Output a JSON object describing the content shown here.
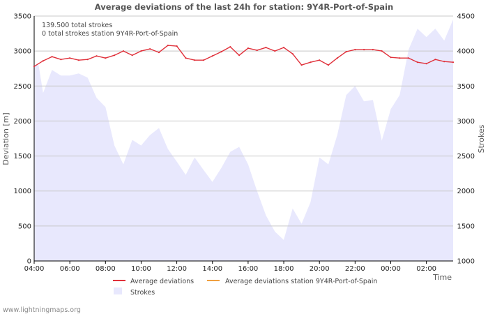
{
  "chart_data": {
    "type": "line",
    "title": "Average deviations of the last 24h for station: 9Y4R-Port-of-Spain",
    "xlabel": "Time",
    "ylabel": "Deviation  [m]",
    "y2label": "Strokes",
    "x_ticks": [
      "04:00",
      "06:00",
      "08:00",
      "10:00",
      "12:00",
      "14:00",
      "16:00",
      "18:00",
      "20:00",
      "22:00",
      "00:00",
      "02:00"
    ],
    "ylim": [
      0,
      3500
    ],
    "y_ticks": [
      0,
      500,
      1000,
      1500,
      2000,
      2500,
      3000,
      3500
    ],
    "y2lim": [
      1000,
      4500
    ],
    "y2_ticks": [
      1000,
      1500,
      2000,
      2500,
      3000,
      3500,
      4000,
      4500
    ],
    "x_range_hours": [
      0,
      23.5
    ],
    "annotations": [
      "139.500 total strokes",
      "0 total strokes station 9Y4R-Port-of-Spain"
    ],
    "grid": true,
    "series": [
      {
        "name": "Average deviations",
        "axis": "left",
        "color": "#e0303a",
        "x": [
          0,
          0.5,
          1,
          1.5,
          2,
          2.5,
          3,
          3.5,
          4,
          4.5,
          5,
          5.5,
          6,
          6.5,
          7,
          7.5,
          8,
          8.5,
          9,
          9.5,
          10,
          10.5,
          11,
          11.5,
          12,
          12.5,
          13,
          13.5,
          14,
          14.5,
          15,
          15.5,
          16,
          16.5,
          17,
          17.5,
          18,
          18.5,
          19,
          19.5,
          20,
          20.5,
          21,
          21.5,
          22,
          22.5,
          23,
          23.5
        ],
        "values": [
          2780,
          2860,
          2920,
          2880,
          2900,
          2870,
          2880,
          2930,
          2900,
          2940,
          3000,
          2940,
          3000,
          3030,
          2980,
          3080,
          3070,
          2900,
          2870,
          2870,
          2930,
          2990,
          3060,
          2940,
          3040,
          3010,
          3050,
          3000,
          3050,
          2960,
          2800,
          2840,
          2870,
          2800,
          2900,
          2990,
          3020,
          3020,
          3020,
          3000,
          2910,
          2900,
          2900,
          2840,
          2820,
          2880,
          2850,
          2840
        ]
      },
      {
        "name": "Average deviations station 9Y4R-Port-of-Spain",
        "axis": "left",
        "color": "#f0a040",
        "x": [],
        "values": []
      },
      {
        "name": "Strokes",
        "axis": "right",
        "color": "#e8e8fd",
        "type": "area",
        "x": [
          0,
          0.25,
          0.5,
          1,
          1.5,
          2,
          2.5,
          3,
          3.5,
          4,
          4.5,
          5,
          5.5,
          6,
          6.5,
          7,
          7.5,
          8,
          8.5,
          9,
          9.5,
          10,
          10.5,
          11,
          11.5,
          12,
          12.5,
          13,
          13.5,
          14,
          14.5,
          15,
          15.5,
          16,
          16.5,
          17,
          17.5,
          18,
          18.5,
          19,
          19.5,
          20,
          20.5,
          21,
          21.5,
          22,
          22.5,
          23,
          23.5
        ],
        "values": [
          3800,
          3800,
          3400,
          3730,
          3650,
          3650,
          3680,
          3620,
          3330,
          3200,
          2650,
          2380,
          2730,
          2650,
          2800,
          2900,
          2600,
          2420,
          2230,
          2480,
          2300,
          2130,
          2330,
          2560,
          2630,
          2380,
          2000,
          1650,
          1420,
          1300,
          1750,
          1530,
          1840,
          2480,
          2380,
          2800,
          3370,
          3500,
          3280,
          3300,
          2720,
          3170,
          3370,
          4020,
          4320,
          4200,
          4320,
          4150,
          4450
        ]
      }
    ]
  },
  "legend": {
    "avg": "Average deviations",
    "station": "Average deviations station 9Y4R-Port-of-Spain",
    "strokes": "Strokes"
  },
  "credit": "www.lightningmaps.org",
  "colors": {
    "avg_line": "#e0303a",
    "station_line": "#f0a040",
    "strokes_fill": "#e8e8fd",
    "grid": "#c8c8c8",
    "axis": "#000000"
  }
}
